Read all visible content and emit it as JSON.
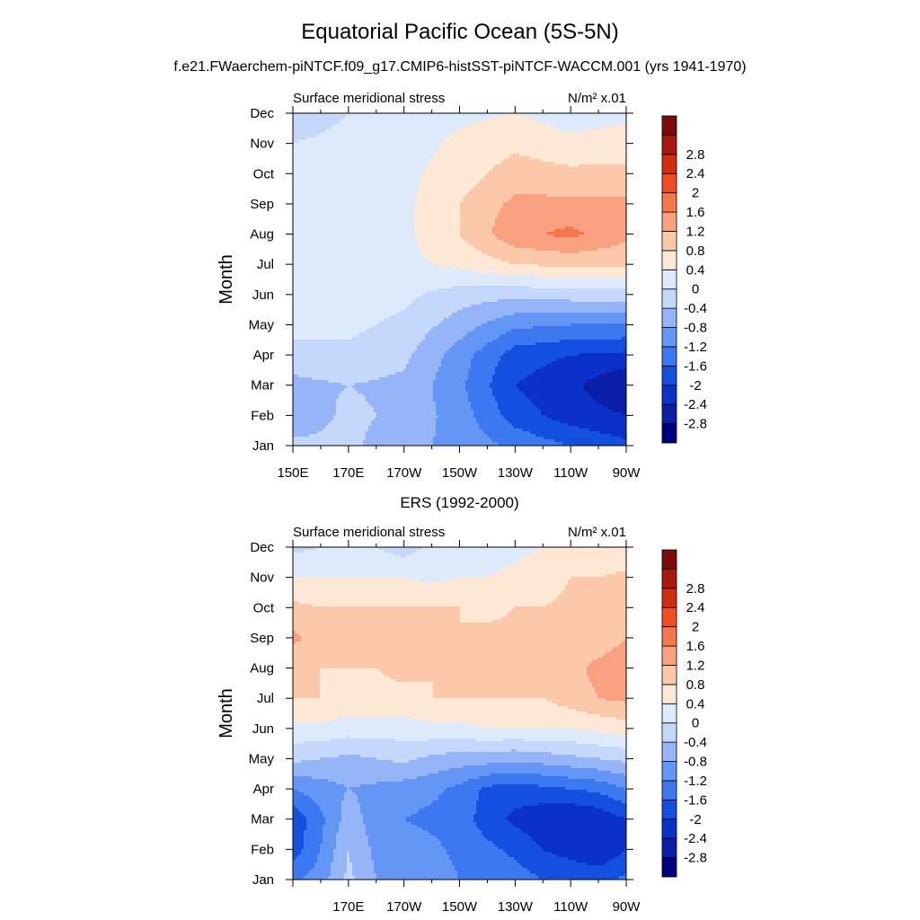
{
  "figure": {
    "title": "Equatorial Pacific Ocean (5S-5N)",
    "subtitle": "f.e21.FWaerchem-piNTCF.f09_g17.CMIP6-histSST-piNTCF-WACCM.001 (yrs 1941-1970)"
  },
  "colorbar": {
    "levels": [
      -2.8,
      -2.4,
      -2,
      -1.6,
      -1.2,
      -0.8,
      -0.4,
      0,
      0.4,
      0.8,
      1.2,
      1.6,
      2,
      2.4,
      2.8
    ],
    "labels": [
      "-2.8",
      "-2.4",
      "-2",
      "-1.6",
      "-1.2",
      "-0.8",
      "-0.4",
      "0",
      "0.4",
      "0.8",
      "1.2",
      "1.6",
      "2",
      "2.4",
      "2.8"
    ],
    "colors": [
      "#00007f",
      "#0a1ea8",
      "#0a32c8",
      "#1450e0",
      "#3c78f0",
      "#6496f5",
      "#96b4f8",
      "#c4d8fb",
      "#dceafc",
      "#fde8d6",
      "#fcc8aa",
      "#f9a07e",
      "#f5784c",
      "#f04e1e",
      "#d22d0f",
      "#aa190a",
      "#7d0a0a"
    ]
  },
  "chart_data": [
    {
      "type": "heatmap",
      "panel_title": "",
      "left_label": "Surface meridional stress",
      "right_label": "N/m² x.01",
      "ylabel": "Month",
      "x_ticks": [
        "150E",
        "170E",
        "170W",
        "150W",
        "130W",
        "110W",
        "90W"
      ],
      "x_tick_values": [
        150,
        170,
        190,
        210,
        230,
        250,
        270
      ],
      "xlim": [
        150,
        270
      ],
      "y_ticks": [
        "Jan",
        "Feb",
        "Mar",
        "Apr",
        "May",
        "Jun",
        "Jul",
        "Aug",
        "Sep",
        "Oct",
        "Nov",
        "Dec"
      ],
      "grid_lon": [
        150,
        170,
        190,
        210,
        230,
        250,
        270
      ],
      "values": [
        [
          -0.3,
          -0.3,
          -0.7,
          -0.9,
          -1.3,
          -1.6,
          -1.9
        ],
        [
          -0.7,
          -0.3,
          -0.5,
          -1.0,
          -1.8,
          -2.2,
          -2.4
        ],
        [
          -0.5,
          -0.4,
          -0.5,
          -1.1,
          -2.0,
          -2.3,
          -2.8
        ],
        [
          -0.2,
          -0.1,
          -0.3,
          -1.0,
          -1.8,
          -2.0,
          -2.1
        ],
        [
          0.2,
          0.1,
          -0.1,
          -0.6,
          -1.1,
          -1.2,
          -1.2
        ],
        [
          0.2,
          0.2,
          0.1,
          -0.2,
          -0.3,
          -0.2,
          -0.2
        ],
        [
          0.1,
          0.2,
          0.3,
          0.5,
          0.8,
          0.9,
          0.9
        ],
        [
          0.1,
          0.2,
          0.3,
          0.8,
          1.5,
          1.7,
          1.3
        ],
        [
          0.1,
          0.2,
          0.3,
          0.8,
          1.3,
          1.3,
          1.3
        ],
        [
          0.1,
          0.2,
          0.3,
          0.6,
          1.0,
          0.9,
          0.9
        ],
        [
          0.0,
          0.1,
          0.2,
          0.5,
          0.7,
          0.5,
          0.6
        ],
        [
          -0.2,
          0.0,
          0.1,
          0.3,
          0.4,
          0.2,
          0.3
        ]
      ]
    },
    {
      "type": "heatmap",
      "panel_title": "ERS (1992-2000)",
      "left_label": "Surface meridional stress",
      "right_label": "N/m² x.01",
      "ylabel": "Month",
      "x_ticks": [
        "170E",
        "170W",
        "150W",
        "130W",
        "110W",
        "90W"
      ],
      "x_tick_values": [
        170,
        190,
        210,
        230,
        250,
        270
      ],
      "xlim": [
        150,
        270
      ],
      "y_ticks": [
        "Jan",
        "Feb",
        "Mar",
        "Apr",
        "May",
        "Jun",
        "Jul",
        "Aug",
        "Sep",
        "Oct",
        "Nov",
        "Dec"
      ],
      "grid_lon": [
        150,
        160,
        170,
        180,
        190,
        200,
        210,
        220,
        230,
        240,
        250,
        260,
        270
      ],
      "values": [
        [
          -1.3,
          -1.0,
          -0.3,
          -0.8,
          -0.9,
          -1.0,
          -1.2,
          -1.3,
          -1.4,
          -1.6,
          -1.6,
          -1.7,
          -1.5
        ],
        [
          -1.8,
          -1.2,
          -0.4,
          -0.9,
          -1.0,
          -1.1,
          -1.3,
          -1.5,
          -1.7,
          -2.0,
          -2.2,
          -2.4,
          -2.0
        ],
        [
          -1.9,
          -1.3,
          -0.6,
          -1.0,
          -1.2,
          -1.3,
          -1.4,
          -1.8,
          -2.1,
          -2.3,
          -2.4,
          -2.3,
          -2.0
        ],
        [
          -1.2,
          -1.0,
          -0.8,
          -0.9,
          -1.0,
          -1.1,
          -1.3,
          -1.7,
          -1.8,
          -1.7,
          -1.6,
          -1.5,
          -1.2
        ],
        [
          -0.3,
          -0.4,
          -0.5,
          -0.4,
          -0.3,
          -0.5,
          -0.6,
          -0.6,
          -0.7,
          -0.6,
          -0.5,
          -0.4,
          -0.3
        ],
        [
          0.3,
          0.3,
          0.2,
          0.2,
          0.2,
          0.3,
          0.3,
          0.4,
          0.4,
          0.4,
          0.4,
          0.5,
          0.6
        ],
        [
          0.8,
          0.8,
          0.7,
          0.7,
          0.7,
          0.8,
          0.8,
          0.8,
          0.8,
          0.8,
          1.0,
          1.2,
          1.3
        ],
        [
          0.9,
          0.8,
          0.8,
          0.8,
          0.9,
          0.8,
          0.9,
          0.9,
          0.9,
          0.9,
          1.1,
          1.3,
          1.4
        ],
        [
          1.3,
          1.0,
          0.9,
          0.9,
          0.9,
          0.8,
          0.8,
          0.9,
          0.9,
          0.9,
          0.9,
          1.0,
          1.2
        ],
        [
          0.9,
          0.8,
          0.8,
          0.8,
          0.8,
          0.8,
          0.8,
          0.7,
          0.8,
          0.8,
          0.9,
          0.9,
          1.1
        ],
        [
          0.4,
          0.4,
          0.4,
          0.4,
          0.4,
          0.3,
          0.4,
          0.4,
          0.5,
          0.6,
          0.8,
          0.8,
          0.9
        ],
        [
          -0.1,
          0.0,
          0.1,
          0.0,
          -0.2,
          0.1,
          0.2,
          0.2,
          0.3,
          0.4,
          0.5,
          0.5,
          0.4
        ]
      ]
    }
  ]
}
